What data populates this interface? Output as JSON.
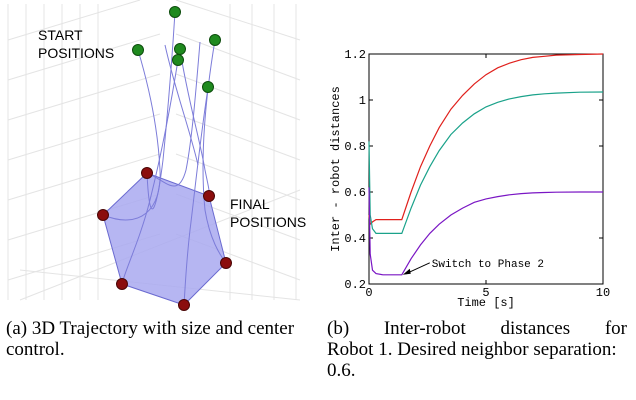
{
  "panel_a": {
    "start_label": [
      "START",
      "POSITIONS"
    ],
    "final_label": [
      "FINAL",
      "POSITIONS"
    ],
    "colors": {
      "start": "#1f8a1f",
      "final": "#8b0d0d",
      "polygon": "#a9a9f0",
      "trajectory": "#7c7cd9"
    }
  },
  "caption_a": "(a) 3D Trajectory with size and center control.",
  "caption_b": {
    "words": [
      "(b)",
      "Inter-robot",
      "distances",
      "for"
    ],
    "rest": "Robot 1. Desired neighbor separation: 0.6."
  },
  "chart_data": {
    "type": "line",
    "xlabel": "Time [s]",
    "ylabel": "Inter - robot distances",
    "xlim": [
      0,
      10
    ],
    "ylim": [
      0.2,
      1.2
    ],
    "xticks": [
      0,
      5,
      10
    ],
    "yticks": [
      0.2,
      0.4,
      0.6,
      0.8,
      1,
      1.2
    ],
    "ytick_labels": [
      "0.2",
      "0.4",
      "0.6",
      "0.8",
      "1",
      "1.2"
    ],
    "grid": false,
    "annotation": {
      "text": "Switch to Phase 2",
      "x": 1.4,
      "y": 0.24
    },
    "series": [
      {
        "color": "#e0201c",
        "x": [
          0,
          0.05,
          0.15,
          0.3,
          0.6,
          1.0,
          1.4,
          1.8,
          2.2,
          2.6,
          3.0,
          3.5,
          4.0,
          4.5,
          5.0,
          5.5,
          6.0,
          6.5,
          7.0,
          7.5,
          8.0,
          9.0,
          10.0
        ],
        "y": [
          0.5,
          0.46,
          0.47,
          0.48,
          0.48,
          0.48,
          0.48,
          0.6,
          0.71,
          0.8,
          0.88,
          0.96,
          1.02,
          1.07,
          1.11,
          1.14,
          1.16,
          1.175,
          1.185,
          1.19,
          1.195,
          1.198,
          1.2
        ]
      },
      {
        "color": "#1aa28a",
        "x": [
          0,
          0.05,
          0.15,
          0.3,
          0.6,
          1.0,
          1.4,
          1.8,
          2.2,
          2.6,
          3.0,
          3.5,
          4.0,
          4.5,
          5.0,
          5.5,
          6.0,
          6.5,
          7.0,
          7.5,
          8.0,
          9.0,
          10.0
        ],
        "y": [
          0.82,
          0.5,
          0.44,
          0.42,
          0.42,
          0.42,
          0.42,
          0.53,
          0.63,
          0.71,
          0.78,
          0.85,
          0.9,
          0.94,
          0.97,
          0.99,
          1.005,
          1.015,
          1.022,
          1.027,
          1.03,
          1.034,
          1.035
        ]
      },
      {
        "color": "#7a16c4",
        "x": [
          0,
          0.05,
          0.15,
          0.3,
          0.6,
          1.0,
          1.4,
          1.8,
          2.2,
          2.6,
          3.0,
          3.5,
          4.0,
          4.5,
          5.0,
          5.5,
          6.0,
          6.5,
          7.0,
          7.5,
          8.0,
          9.0,
          10.0
        ],
        "y": [
          0.62,
          0.33,
          0.26,
          0.245,
          0.24,
          0.24,
          0.24,
          0.31,
          0.37,
          0.42,
          0.46,
          0.5,
          0.53,
          0.555,
          0.57,
          0.58,
          0.588,
          0.593,
          0.596,
          0.598,
          0.599,
          0.6,
          0.6
        ]
      }
    ]
  }
}
